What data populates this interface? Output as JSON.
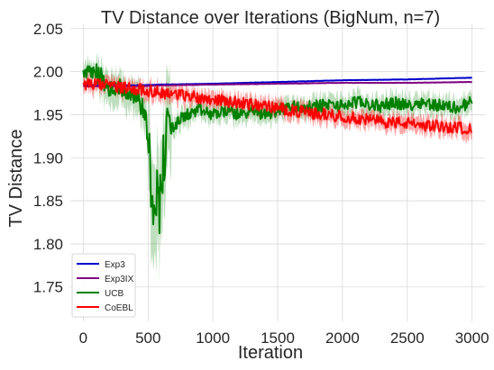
{
  "chart_data": {
    "type": "line",
    "title": "TV Distance over Iterations (BigNum, n=7)",
    "xlabel": "Iteration",
    "ylabel": "TV Distance",
    "xlim": [
      -100,
      3100
    ],
    "ylim": [
      1.71,
      2.055
    ],
    "x_ticks": [
      0,
      500,
      1000,
      1500,
      2000,
      2500,
      3000
    ],
    "y_ticks": [
      1.75,
      1.8,
      1.85,
      1.9,
      1.95,
      2.0,
      2.05
    ],
    "x_tick_labels": [
      "0",
      "500",
      "1000",
      "1500",
      "2000",
      "2500",
      "3000"
    ],
    "y_tick_labels": [
      "1.75",
      "1.80",
      "1.85",
      "1.90",
      "1.95",
      "2.00",
      "2.05"
    ],
    "grid": true,
    "legend_position": "lower-left",
    "series": [
      {
        "name": "Exp3",
        "color": "#0000cc",
        "x": [
          0,
          200,
          400,
          600,
          1000,
          1500,
          2000,
          2500,
          3000
        ],
        "y": [
          1.984,
          1.984,
          1.984,
          1.985,
          1.986,
          1.988,
          1.99,
          1.991,
          1.993
        ],
        "band": 0.001
      },
      {
        "name": "Exp3IX",
        "color": "#800080",
        "x": [
          0,
          200,
          400,
          600,
          1000,
          1500,
          2000,
          2500,
          3000
        ],
        "y": [
          1.983,
          1.983,
          1.983,
          1.984,
          1.985,
          1.986,
          1.987,
          1.987,
          1.988
        ],
        "band": 0.001
      },
      {
        "name": "UCB",
        "color": "#008000",
        "x": [
          0,
          100,
          150,
          200,
          250,
          300,
          350,
          400,
          450,
          480,
          500,
          520,
          540,
          560,
          580,
          600,
          620,
          640,
          660,
          680,
          700,
          750,
          800,
          900,
          1000,
          1100,
          1200,
          1300,
          1400,
          1500,
          1600,
          1700,
          1800,
          1900,
          2000,
          2100,
          2200,
          2300,
          2400,
          2500,
          2600,
          2700,
          2800,
          2900,
          2950,
          3000
        ],
        "y": [
          2.0,
          2.0,
          1.99,
          1.975,
          1.985,
          1.98,
          1.975,
          1.975,
          1.96,
          1.95,
          1.92,
          1.88,
          1.85,
          1.87,
          1.84,
          1.86,
          1.9,
          1.92,
          1.93,
          1.94,
          1.935,
          1.945,
          1.95,
          1.955,
          1.95,
          1.955,
          1.95,
          1.955,
          1.95,
          1.955,
          1.96,
          1.958,
          1.96,
          1.962,
          1.96,
          1.965,
          1.962,
          1.96,
          1.965,
          1.96,
          1.965,
          1.962,
          1.96,
          1.958,
          1.962,
          1.965
        ],
        "band": 0.012
      },
      {
        "name": "CoEBL",
        "color": "#ff0000",
        "x": [
          0,
          100,
          200,
          300,
          400,
          500,
          600,
          700,
          800,
          900,
          1000,
          1100,
          1200,
          1300,
          1400,
          1500,
          1600,
          1700,
          1800,
          1900,
          2000,
          2100,
          2200,
          2300,
          2400,
          2500,
          2600,
          2700,
          2800,
          2900,
          3000
        ],
        "y": [
          1.986,
          1.985,
          1.984,
          1.982,
          1.98,
          1.978,
          1.976,
          1.974,
          1.972,
          1.97,
          1.968,
          1.966,
          1.964,
          1.962,
          1.96,
          1.958,
          1.955,
          1.953,
          1.951,
          1.95,
          1.948,
          1.946,
          1.944,
          1.942,
          1.941,
          1.94,
          1.938,
          1.937,
          1.936,
          1.935,
          1.933
        ],
        "band": 0.01
      }
    ]
  }
}
